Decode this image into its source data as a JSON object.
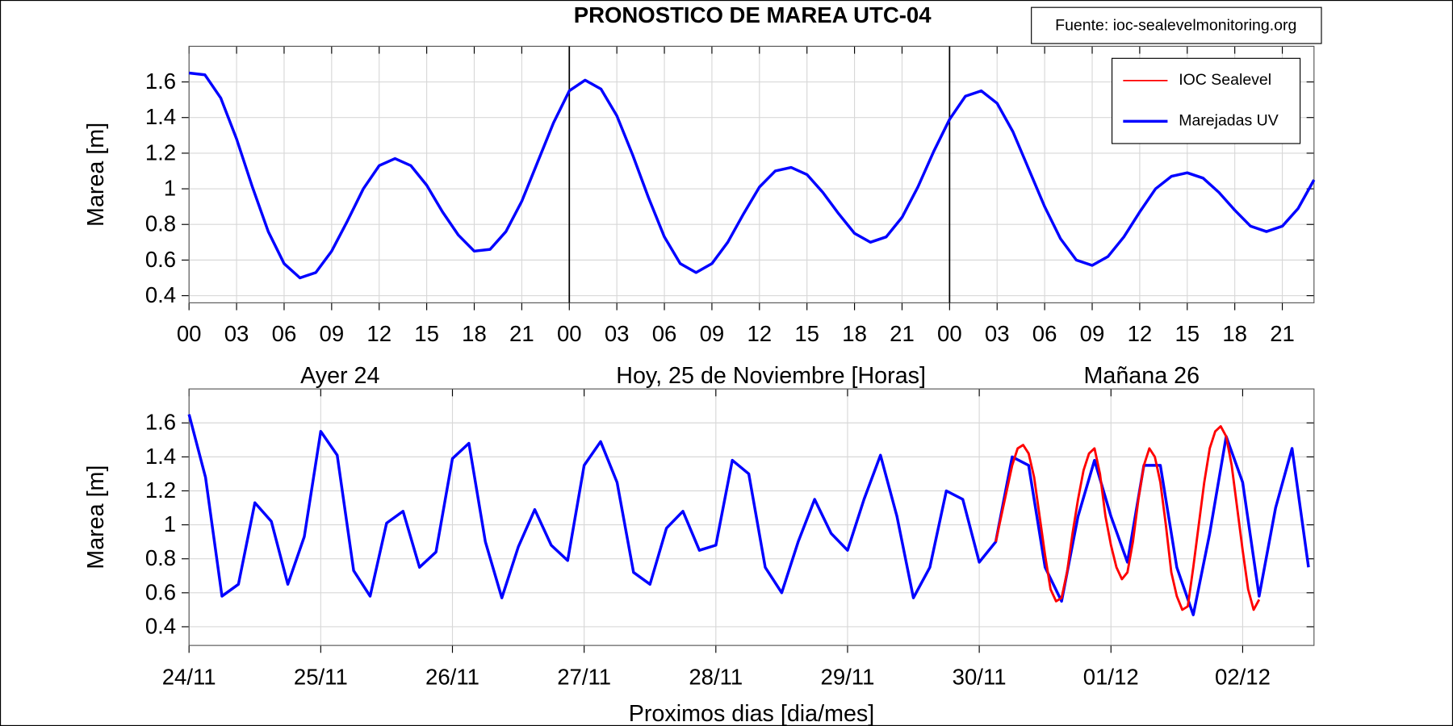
{
  "title": "PRONOSTICO DE MAREA  UTC-04",
  "source": "Fuente: ioc-sealevelmonitoring.org",
  "chart_data": [
    {
      "type": "line",
      "ylabel": "Marea [m]",
      "xlabel": "Hoy, 25 de  Noviembre  [Horas]",
      "annotations": [
        "Ayer 24",
        "Mañana 26"
      ],
      "xlim": [
        0,
        71
      ],
      "ylim": [
        0.36,
        1.8
      ],
      "yticks": [
        0.4,
        0.6,
        0.8,
        1,
        1.2,
        1.4,
        1.6
      ],
      "xticks": [
        {
          "value": 0,
          "label": "00"
        },
        {
          "value": 3,
          "label": "03"
        },
        {
          "value": 6,
          "label": "06"
        },
        {
          "value": 9,
          "label": "09"
        },
        {
          "value": 12,
          "label": "12"
        },
        {
          "value": 15,
          "label": "15"
        },
        {
          "value": 18,
          "label": "18"
        },
        {
          "value": 21,
          "label": "21"
        },
        {
          "value": 24,
          "label": "00"
        },
        {
          "value": 27,
          "label": "03"
        },
        {
          "value": 30,
          "label": "06"
        },
        {
          "value": 33,
          "label": "09"
        },
        {
          "value": 36,
          "label": "12"
        },
        {
          "value": 39,
          "label": "15"
        },
        {
          "value": 42,
          "label": "18"
        },
        {
          "value": 45,
          "label": "21"
        },
        {
          "value": 48,
          "label": "00"
        },
        {
          "value": 51,
          "label": "03"
        },
        {
          "value": 54,
          "label": "06"
        },
        {
          "value": 57,
          "label": "09"
        },
        {
          "value": 60,
          "label": "12"
        },
        {
          "value": 63,
          "label": "15"
        },
        {
          "value": 66,
          "label": "18"
        },
        {
          "value": 69,
          "label": "21"
        }
      ],
      "vlines": [
        24,
        48
      ],
      "grid": true,
      "legend_loc": "upper right",
      "series": [
        {
          "color": "#0000ff",
          "x": [
            0,
            1,
            2,
            3,
            4,
            5,
            6,
            7,
            8,
            9,
            10,
            11,
            12,
            13,
            14,
            15,
            16,
            17,
            18,
            19,
            20,
            21,
            22,
            23,
            24,
            25,
            26,
            27,
            28,
            29,
            30,
            31,
            32,
            33,
            34,
            35,
            36,
            37,
            38,
            39,
            40,
            41,
            42,
            43,
            44,
            45,
            46,
            47,
            48,
            49,
            50,
            51,
            52,
            53,
            54,
            55,
            56,
            57,
            58,
            59,
            60,
            61,
            62,
            63,
            64,
            65,
            66,
            67,
            68,
            69,
            70,
            71
          ],
          "values": [
            1.65,
            1.64,
            1.51,
            1.28,
            1.01,
            0.76,
            0.58,
            0.5,
            0.53,
            0.65,
            0.82,
            1.0,
            1.13,
            1.17,
            1.13,
            1.02,
            0.87,
            0.74,
            0.65,
            0.66,
            0.76,
            0.93,
            1.15,
            1.37,
            1.55,
            1.61,
            1.56,
            1.41,
            1.19,
            0.95,
            0.73,
            0.58,
            0.53,
            0.58,
            0.7,
            0.86,
            1.01,
            1.1,
            1.12,
            1.08,
            0.98,
            0.86,
            0.75,
            0.7,
            0.73,
            0.84,
            1.01,
            1.21,
            1.39,
            1.52,
            1.55,
            1.48,
            1.32,
            1.11,
            0.9,
            0.72,
            0.6,
            0.57,
            0.62,
            0.73,
            0.87,
            1.0,
            1.07,
            1.09,
            1.06,
            0.98,
            0.88,
            0.79,
            0.76,
            0.79,
            0.89,
            1.05
          ]
        }
      ]
    },
    {
      "type": "line",
      "ylabel": "Marea [m]",
      "xlabel": "Proximos dias [dia/mes]",
      "xlim": [
        0,
        205
      ],
      "ylim": [
        0.29,
        1.8
      ],
      "yticks": [
        0.4,
        0.6,
        0.8,
        1,
        1.2,
        1.4,
        1.6
      ],
      "xticks": [
        {
          "value": 0,
          "label": "24/11"
        },
        {
          "value": 24,
          "label": "25/11"
        },
        {
          "value": 48,
          "label": "26/11"
        },
        {
          "value": 72,
          "label": "27/11"
        },
        {
          "value": 96,
          "label": "28/11"
        },
        {
          "value": 120,
          "label": "29/11"
        },
        {
          "value": 144,
          "label": "30/11"
        },
        {
          "value": 168,
          "label": "01/12"
        },
        {
          "value": 192,
          "label": "02/12"
        }
      ],
      "grid": true,
      "series": [
        {
          "name": "Marejadas UV",
          "color": "#0000ff",
          "x": [
            0,
            3,
            6,
            9,
            12,
            15,
            18,
            21,
            24,
            27,
            30,
            33,
            36,
            39,
            42,
            45,
            48,
            51,
            54,
            57,
            60,
            63,
            66,
            69,
            72,
            75,
            78,
            81,
            84,
            87,
            90,
            93,
            96,
            99,
            102,
            105,
            108,
            111,
            114,
            117,
            120,
            123,
            126,
            129,
            132,
            135,
            138,
            141,
            144,
            147,
            150,
            153,
            156,
            159,
            162,
            165,
            168,
            171,
            174,
            177,
            180,
            183,
            186,
            189,
            192,
            195,
            198,
            201,
            204
          ],
          "values": [
            1.65,
            1.28,
            0.58,
            0.65,
            1.13,
            1.02,
            0.65,
            0.93,
            1.55,
            1.41,
            0.73,
            0.58,
            1.01,
            1.08,
            0.75,
            0.84,
            1.39,
            1.48,
            0.9,
            0.57,
            0.87,
            1.09,
            0.88,
            0.79,
            1.35,
            1.49,
            1.25,
            0.72,
            0.65,
            0.98,
            1.08,
            0.85,
            0.88,
            1.38,
            1.3,
            0.75,
            0.6,
            0.9,
            1.15,
            0.95,
            0.85,
            1.15,
            1.41,
            1.05,
            0.57,
            0.75,
            1.2,
            1.15,
            0.78,
            0.9,
            1.4,
            1.35,
            0.75,
            0.55,
            1.05,
            1.38,
            1.05,
            0.78,
            1.35,
            1.35,
            0.75,
            0.47,
            0.95,
            1.52,
            1.25,
            0.58,
            1.1,
            1.45,
            0.75
          ]
        },
        {
          "name": "IOC Sealevel",
          "color": "#ff0000",
          "x": [
            147,
            148,
            149,
            150,
            151,
            152,
            153,
            154,
            155,
            156,
            157,
            158,
            159,
            160,
            161,
            162,
            163,
            164,
            165,
            166,
            167,
            168,
            169,
            170,
            171,
            172,
            173,
            174,
            175,
            176,
            177,
            178,
            179,
            180,
            181,
            182,
            183,
            184,
            185,
            186,
            187,
            188,
            189,
            190,
            191,
            192,
            193,
            194,
            195
          ],
          "values": [
            0.9,
            1.05,
            1.2,
            1.35,
            1.45,
            1.47,
            1.42,
            1.28,
            1.05,
            0.82,
            0.62,
            0.55,
            0.57,
            0.72,
            0.95,
            1.15,
            1.32,
            1.42,
            1.45,
            1.3,
            1.05,
            0.88,
            0.75,
            0.68,
            0.72,
            0.9,
            1.15,
            1.35,
            1.45,
            1.4,
            1.25,
            1.0,
            0.72,
            0.58,
            0.5,
            0.52,
            0.75,
            1.0,
            1.25,
            1.45,
            1.55,
            1.58,
            1.52,
            1.35,
            1.1,
            0.85,
            0.62,
            0.5,
            0.56
          ]
        }
      ]
    }
  ]
}
